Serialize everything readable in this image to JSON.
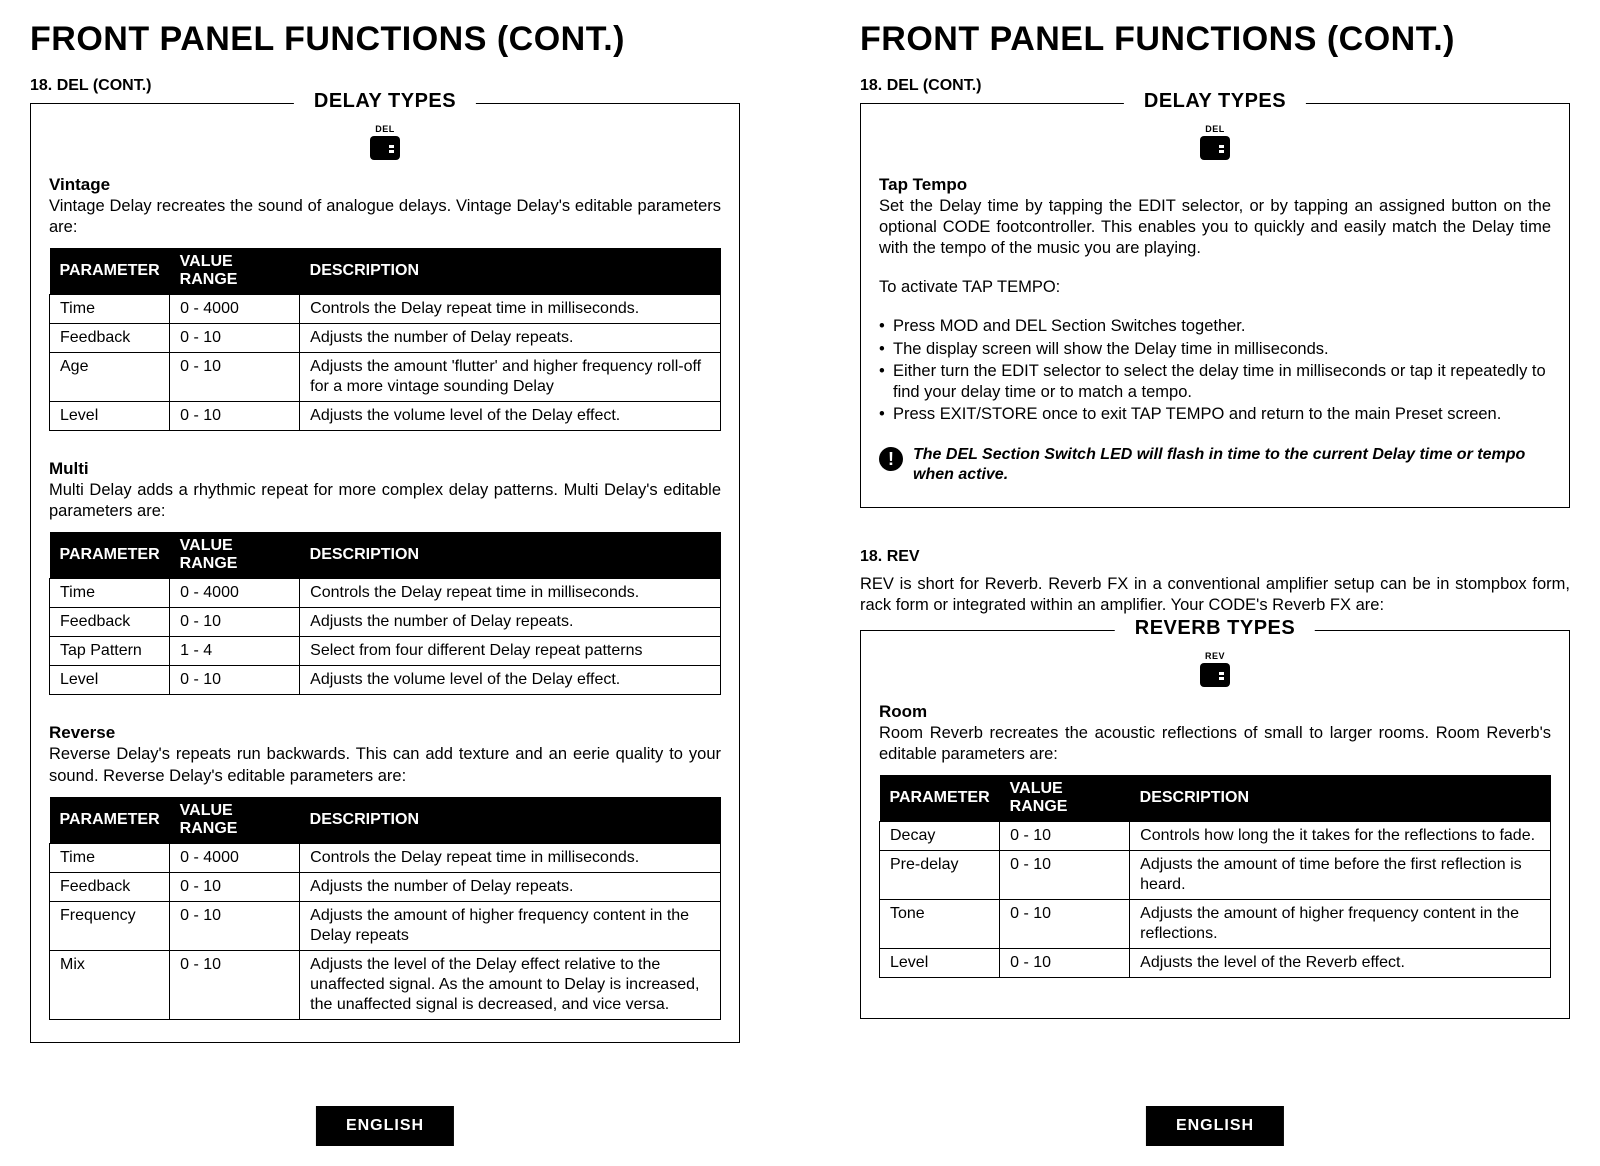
{
  "left": {
    "title": "FRONT PANEL FUNCTIONS (CONT.)",
    "subhead": "18. DEL (CONT.)",
    "panel_title": "DELAY TYPES",
    "icon_label": "DEL",
    "effects": [
      {
        "name": "Vintage",
        "desc": "Vintage Delay recreates the sound of analogue delays. Vintage Delay's editable parameters are:",
        "rows": [
          [
            "Time",
            "0 - 4000",
            "Controls the Delay repeat time in milliseconds."
          ],
          [
            "Feedback",
            "0 - 10",
            "Adjusts the number of Delay repeats."
          ],
          [
            "Age",
            "0 - 10",
            "Adjusts the amount 'flutter' and higher frequency roll-off for a more vintage sounding Delay"
          ],
          [
            "Level",
            "0 - 10",
            "Adjusts the volume level of the Delay effect."
          ]
        ]
      },
      {
        "name": "Multi",
        "desc": "Multi Delay adds a rhythmic repeat for more complex delay patterns. Multi Delay's editable parameters are:",
        "rows": [
          [
            "Time",
            "0 - 4000",
            "Controls the Delay repeat time in milliseconds."
          ],
          [
            "Feedback",
            "0 - 10",
            "Adjusts the number of Delay repeats."
          ],
          [
            "Tap Pattern",
            "1 - 4",
            "Select from four different Delay repeat patterns"
          ],
          [
            "Level",
            "0 - 10",
            "Adjusts the volume level of the Delay effect."
          ]
        ]
      },
      {
        "name": "Reverse",
        "desc": "Reverse Delay's repeats run backwards. This can add texture and an eerie quality to your sound. Reverse Delay's editable parameters are:",
        "rows": [
          [
            "Time",
            "0 - 4000",
            "Controls the Delay repeat time in milliseconds."
          ],
          [
            "Feedback",
            "0 - 10",
            "Adjusts the number of Delay repeats."
          ],
          [
            "Frequency",
            "0 - 10",
            "Adjusts the amount of higher frequency content in the Delay repeats"
          ],
          [
            "Mix",
            "0 - 10",
            "Adjusts the level of the Delay effect relative to the unaffected signal. As the amount to Delay is increased, the unaffected signal is decreased, and vice versa."
          ]
        ]
      }
    ],
    "headers": [
      "PARAMETER",
      "VALUE RANGE",
      "DESCRIPTION"
    ],
    "lang": "ENGLISH"
  },
  "right": {
    "title": "FRONT PANEL FUNCTIONS (CONT.)",
    "subhead": "18. DEL (CONT.)",
    "panel_title_1": "DELAY TYPES",
    "icon_label_1": "DEL",
    "tap": {
      "name": "Tap Tempo",
      "desc": "Set the Delay time by tapping the EDIT selector, or by tapping an assigned button on the optional CODE footcontroller. This enables you to quickly and easily match the Delay time with the tempo of the music you are playing.",
      "activate": "To activate TAP TEMPO:",
      "steps": [
        "Press MOD and DEL Section Switches together.",
        "The display screen will show the Delay time in milliseconds.",
        "Either turn the EDIT selector to select the delay time in milliseconds or tap it repeatedly to find your delay time or to match a tempo.",
        "Press EXIT/STORE once to exit TAP TEMPO and return to the main Preset screen."
      ],
      "info": "The DEL Section Switch LED will flash in time to the current Delay time or tempo when active."
    },
    "rev_subhead": "18. REV",
    "rev_desc": "REV is short for Reverb. Reverb FX in a conventional amplifier setup can be in stompbox form, rack form or integrated within an amplifier. Your CODE's Reverb FX are:",
    "panel_title_2": "REVERB TYPES",
    "icon_label_2": "REV",
    "room": {
      "name": "Room",
      "desc": "Room Reverb recreates the acoustic reflections of small to larger rooms. Room Reverb's editable parameters are:",
      "rows": [
        [
          "Decay",
          "0 - 10",
          "Controls how long the it takes for the reflections to fade."
        ],
        [
          "Pre-delay",
          "0 - 10",
          "Adjusts the amount of time before the first reflection is heard."
        ],
        [
          "Tone",
          "0 - 10",
          "Adjusts the amount of higher frequency content in the reflections."
        ],
        [
          "Level",
          "0 - 10",
          "Adjusts the level of the Reverb effect."
        ]
      ]
    },
    "headers": [
      "PARAMETER",
      "VALUE RANGE",
      "DESCRIPTION"
    ],
    "lang": "ENGLISH"
  }
}
